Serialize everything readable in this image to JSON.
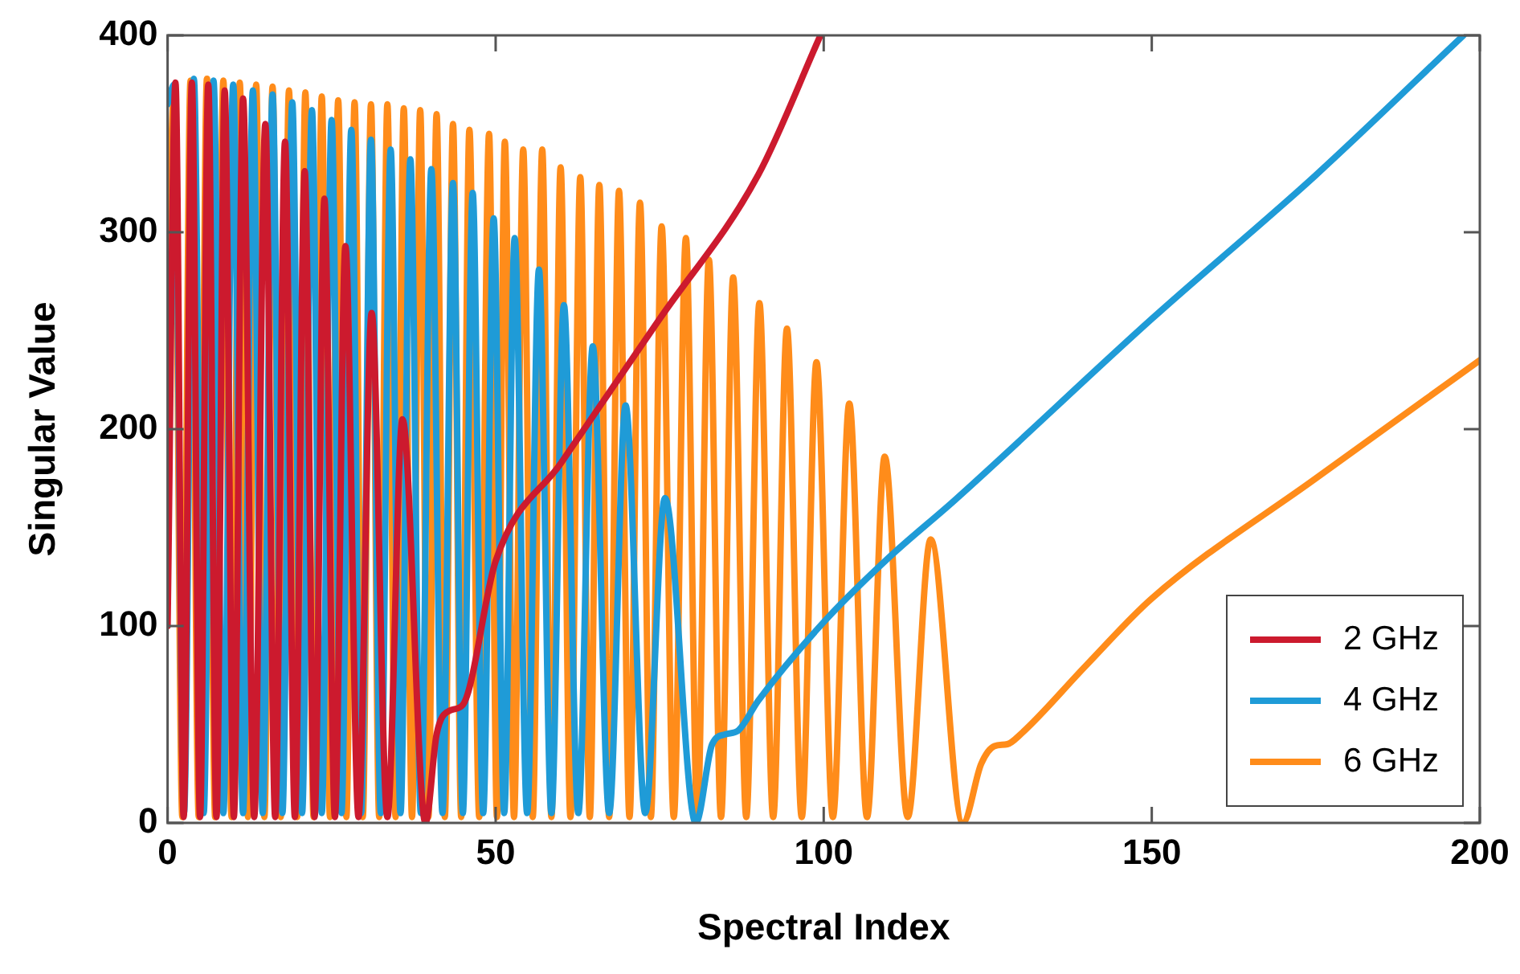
{
  "chart_data": {
    "type": "line",
    "xlabel": "Spectral Index",
    "ylabel": "Singular Value",
    "xlim": [
      0,
      200
    ],
    "xticks": [
      0,
      50,
      100,
      150,
      200
    ],
    "ylim": [
      0,
      400
    ],
    "yticks": [
      0,
      100,
      200,
      300,
      400
    ],
    "grid": false,
    "legend": "bottom right",
    "marker": "none",
    "line_style": "solid",
    "series": [
      {
        "name": "2 GHz",
        "color": "#cc1a2e",
        "x": [
          0,
          1.2,
          2.45,
          3.7,
          4.95,
          6.2,
          7.45,
          8.7,
          10.1,
          11.5,
          13.2,
          14.9,
          16.4,
          17.9,
          19.4,
          20.9,
          22.4,
          23.9,
          25.5,
          27.1,
          29.1,
          31.1,
          33.5,
          35.8,
          39.3,
          41,
          43,
          45,
          50,
          60,
          75,
          90,
          99.5
        ],
        "values": [
          100,
          376,
          3,
          376,
          3,
          375,
          3,
          372,
          3,
          368,
          3,
          355,
          3,
          346,
          3,
          331,
          3,
          317,
          3,
          293,
          3,
          259,
          3,
          205,
          0,
          45,
          57,
          60,
          133,
          183,
          256,
          329,
          400
        ]
      },
      {
        "name": "4 GHz",
        "color": "#1f9bd7",
        "x": [
          0,
          1,
          2.5,
          4,
          5.5,
          7,
          8.5,
          10,
          11.5,
          13,
          14.5,
          16,
          17.5,
          19,
          20.5,
          22,
          23.5,
          25,
          26.5,
          28,
          29.5,
          31,
          32.5,
          34,
          35.5,
          37,
          38.6,
          40.2,
          41.9,
          43.5,
          45,
          46.5,
          48.1,
          49.7,
          51.3,
          52.9,
          54.8,
          56.6,
          58.5,
          60.4,
          62.6,
          64.8,
          67.3,
          69.8,
          72.8,
          75.8,
          80.5,
          83,
          85,
          87,
          90,
          100,
          110,
          120,
          150,
          175,
          197.5
        ],
        "values": [
          365,
          375,
          5,
          378,
          5,
          377,
          5,
          375,
          5,
          372,
          5,
          370,
          5,
          366,
          5,
          362,
          5,
          357,
          5,
          352,
          5,
          347,
          5,
          342,
          5,
          337,
          5,
          332,
          5,
          325,
          5,
          320,
          5,
          307,
          5,
          297,
          5,
          281,
          5,
          263,
          5,
          242,
          5,
          212,
          5,
          165,
          0,
          40,
          45,
          47,
          62,
          102,
          135,
          164,
          256,
          329,
          400
        ]
      },
      {
        "name": "6 GHz",
        "color": "#ff8c1a",
        "x": [
          0,
          1,
          2.25,
          3.5,
          4.75,
          6,
          7.25,
          8.5,
          9.75,
          11,
          12.25,
          13.5,
          14.75,
          16,
          17.25,
          18.5,
          19.75,
          21,
          22.25,
          23.5,
          24.75,
          26,
          27.25,
          28.5,
          29.75,
          31,
          32.25,
          33.5,
          34.75,
          36,
          37.25,
          38.5,
          39.75,
          41,
          42.25,
          43.5,
          44.75,
          46,
          47.5,
          49,
          50.2,
          51.4,
          52.8,
          54.2,
          55.65,
          57.1,
          58.5,
          59.9,
          61.4,
          62.9,
          64.35,
          65.8,
          67.3,
          68.8,
          70.4,
          72,
          73.65,
          75.3,
          77.15,
          79,
          80.75,
          82.5,
          84.35,
          86.2,
          88.2,
          90.2,
          92.3,
          94.4,
          96.65,
          98.9,
          101.4,
          103.9,
          106.6,
          109.3,
          112.8,
          116.3,
          121.2,
          124,
          126,
          128,
          130,
          140,
          150,
          175,
          200
        ],
        "values": [
          265,
          372,
          3,
          377,
          3,
          378,
          3,
          377,
          3,
          376,
          3,
          375,
          3,
          374,
          3,
          372,
          3,
          371,
          3,
          369,
          3,
          367,
          3,
          366,
          3,
          365,
          3,
          365,
          3,
          363,
          3,
          362,
          3,
          360,
          3,
          355,
          3,
          352,
          3,
          350,
          3,
          346,
          3,
          342,
          3,
          342,
          3,
          333,
          3,
          328,
          3,
          324,
          3,
          321,
          3,
          315,
          3,
          303,
          3,
          297,
          3,
          286,
          3,
          277,
          3,
          264,
          3,
          251,
          3,
          234,
          3,
          213,
          3,
          186,
          3,
          144,
          0,
          30,
          39,
          40,
          45,
          80,
          114,
          175,
          235
        ]
      }
    ]
  }
}
